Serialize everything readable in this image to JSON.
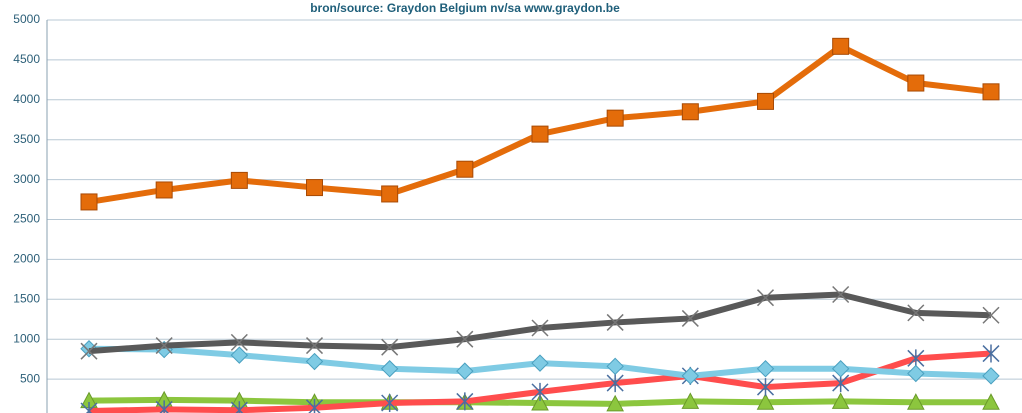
{
  "chart_data": {
    "type": "line",
    "title": "bron/source:  Graydon  Belgium nv/sa     www.graydon.be",
    "ylim": [
      75,
      5000
    ],
    "yticks": [
      500,
      1000,
      1500,
      2000,
      2500,
      3000,
      3500,
      4000,
      4500,
      5000
    ],
    "grid": true,
    "series": [
      {
        "color": "#e46c0a",
        "marker": "square",
        "values": [
          2720,
          2870,
          2990,
          2900,
          2820,
          3130,
          3570,
          3770,
          3850,
          3980,
          4670,
          4210,
          4100
        ]
      },
      {
        "color": "#595959",
        "marker": "x",
        "values": [
          850,
          920,
          960,
          920,
          900,
          1000,
          1140,
          1210,
          1260,
          1520,
          1560,
          1330,
          1300
        ]
      },
      {
        "color": "#7fcbe4",
        "marker": "diamond",
        "values": [
          880,
          870,
          800,
          720,
          630,
          600,
          700,
          660,
          540,
          630,
          630,
          570,
          540
        ]
      },
      {
        "color": "#ff4d4d",
        "marker": "star",
        "values": [
          100,
          120,
          110,
          140,
          200,
          220,
          340,
          450,
          540,
          400,
          450,
          760,
          820
        ]
      },
      {
        "color": "#8cc63e",
        "marker": "triangle",
        "values": [
          230,
          240,
          230,
          210,
          210,
          210,
          200,
          190,
          220,
          210,
          220,
          210,
          210
        ]
      }
    ]
  }
}
